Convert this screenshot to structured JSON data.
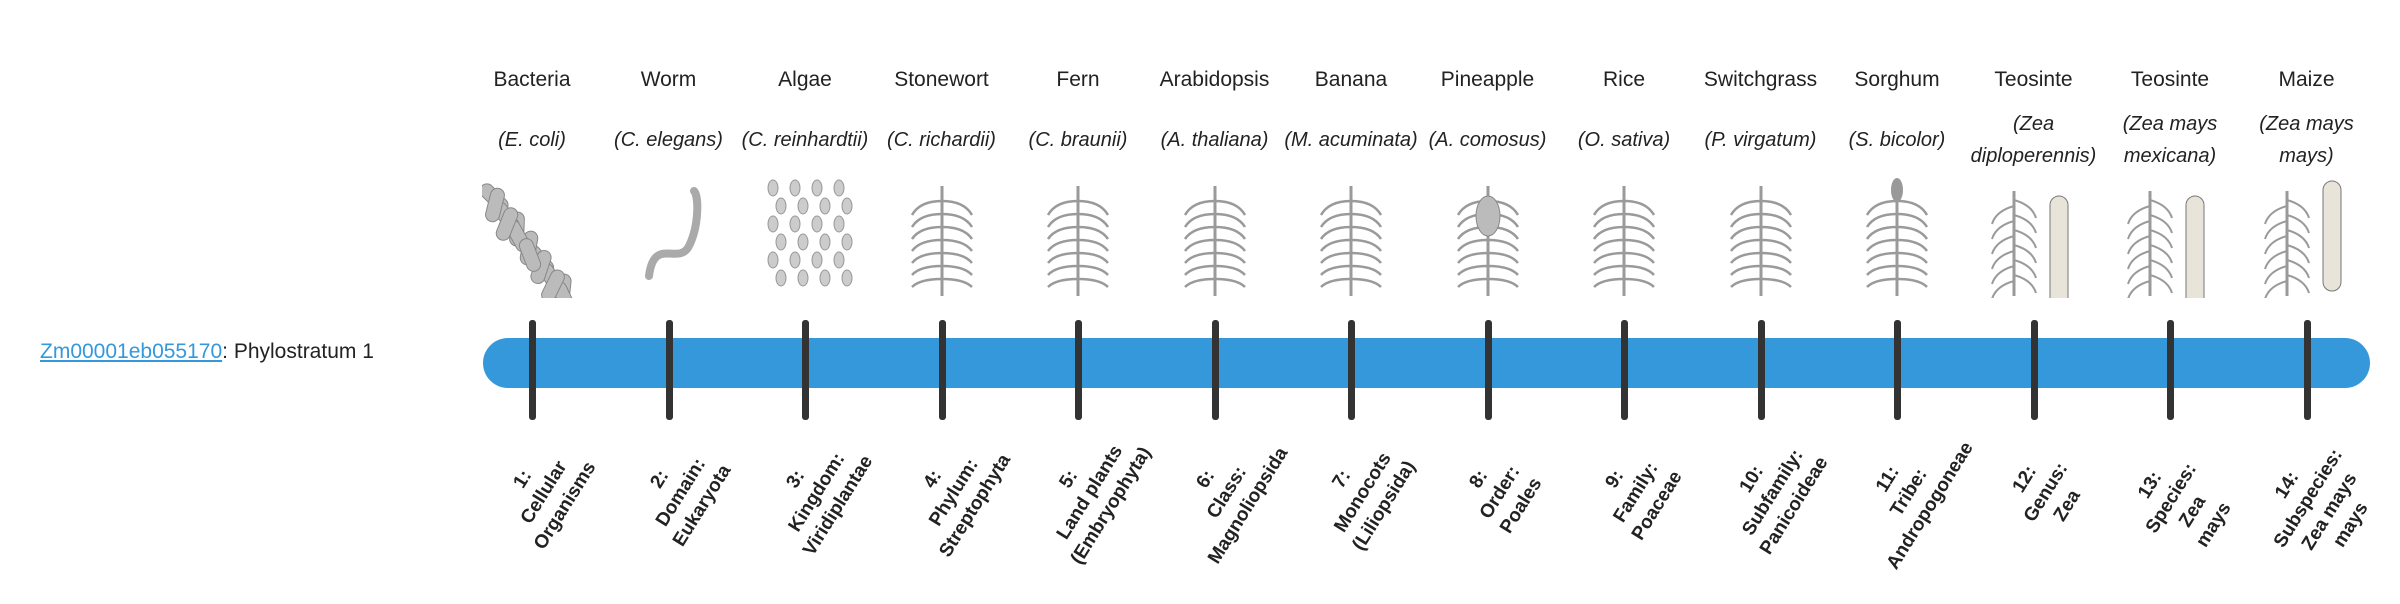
{
  "gene": {
    "id": "Zm00001eb055170",
    "suffix": ": Phylostratum 1"
  },
  "colors": {
    "bar": "#3498db",
    "tick": "#333333",
    "link": "#3498db",
    "illustration": "#9a9a9a"
  },
  "organisms": [
    {
      "common": "Bacteria",
      "species": "(E. coli)",
      "icon": "bacteria-icon"
    },
    {
      "common": "Worm",
      "species": "(C. elegans)",
      "icon": "worm-icon"
    },
    {
      "common": "Algae",
      "species": "(C. reinhardtii)",
      "icon": "algae-icon"
    },
    {
      "common": "Stonewort",
      "species": "(C. richardii)",
      "icon": "stonewort-icon"
    },
    {
      "common": "Fern",
      "species": "(C. braunii)",
      "icon": "fern-icon"
    },
    {
      "common": "Arabidopsis",
      "species": "(A. thaliana)",
      "icon": "arabidopsis-icon"
    },
    {
      "common": "Banana",
      "species": "(M. acuminata)",
      "icon": "banana-icon"
    },
    {
      "common": "Pineapple",
      "species": "(A. comosus)",
      "icon": "pineapple-icon"
    },
    {
      "common": "Rice",
      "species": "(O. sativa)",
      "icon": "rice-icon"
    },
    {
      "common": "Switchgrass",
      "species": "(P. virgatum)",
      "icon": "switchgrass-icon"
    },
    {
      "common": "Sorghum",
      "species": "(S. bicolor)",
      "icon": "sorghum-icon"
    },
    {
      "common": "Teosinte",
      "species": "(Zea diploperennis)",
      "icon": "teosinte-icon"
    },
    {
      "common": "Teosinte",
      "species": "(Zea mays mexicana)",
      "icon": "teosinte-icon"
    },
    {
      "common": "Maize",
      "species": "(Zea mays mays)",
      "icon": "maize-icon"
    }
  ],
  "strata": [
    [
      "1:",
      "Cellular",
      "Organisms"
    ],
    [
      "2:",
      "Domain:",
      "Eukaryota"
    ],
    [
      "3:",
      "Kingdom:",
      "Viridiplantae"
    ],
    [
      "4:",
      "Phylum:",
      "Streptophyta"
    ],
    [
      "5:",
      "Land plants",
      "(Embryophyta)"
    ],
    [
      "6:",
      "Class:",
      "Magnoliopsida"
    ],
    [
      "7:",
      "Monocots",
      "(Liliopsida)"
    ],
    [
      "8:",
      "Order:",
      "Poales"
    ],
    [
      "9:",
      "Family:",
      "Poaceae"
    ],
    [
      "10:",
      "Subfamily:",
      "Panicoideae"
    ],
    [
      "11:",
      "Tribe:",
      "Andropogoneae"
    ],
    [
      "12:",
      "Genus:",
      "Zea"
    ],
    [
      "13:",
      "Species:",
      "Zea",
      "mays"
    ],
    [
      "14:",
      "Subspecies:",
      "Zea mays",
      "mays"
    ]
  ]
}
